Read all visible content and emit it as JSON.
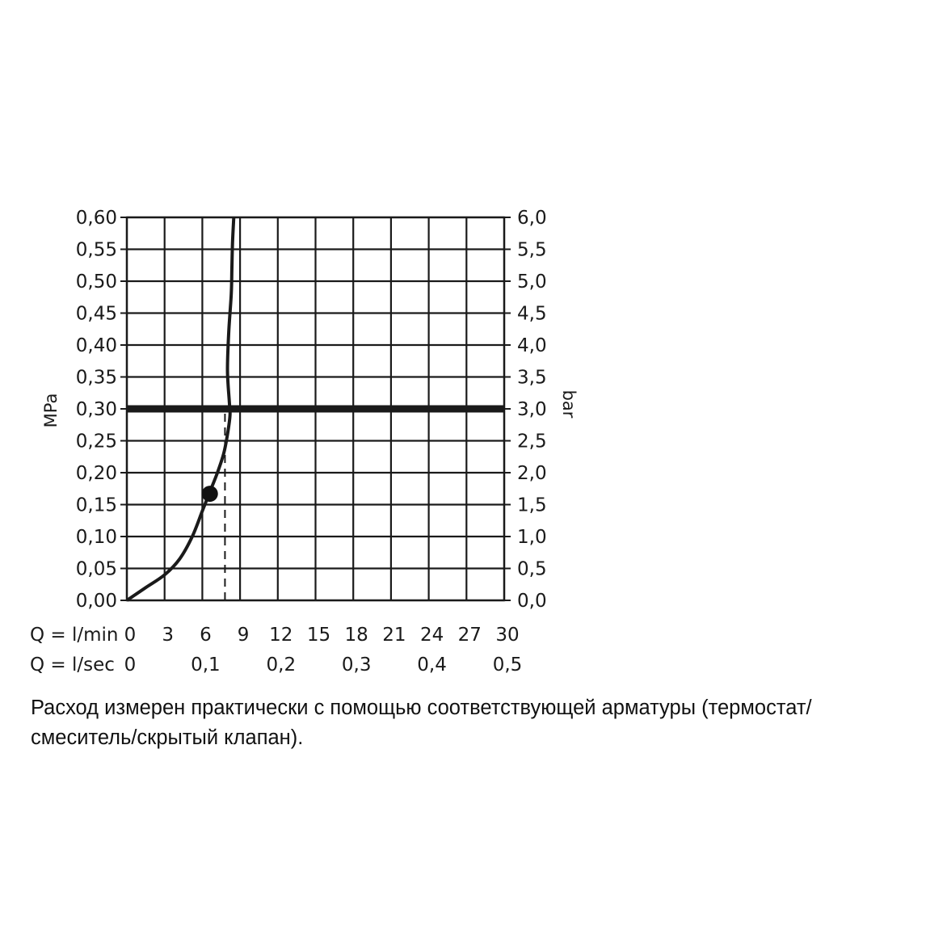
{
  "chart_data": {
    "type": "line",
    "x_unit_label": "Q = l/min",
    "x_secondary_label": "Q = l/sec",
    "y_left_label": "MPa",
    "y_right_label": "bar",
    "x_ticks": [
      "0",
      "3",
      "6",
      "9",
      "12",
      "15",
      "18",
      "21",
      "24",
      "27",
      "30"
    ],
    "x_secondary_ticks": [
      {
        "at": 0,
        "label": "0"
      },
      {
        "at": 6,
        "label": "0,1"
      },
      {
        "at": 12,
        "label": "0,2"
      },
      {
        "at": 18,
        "label": "0,3"
      },
      {
        "at": 24,
        "label": "0,4"
      },
      {
        "at": 30,
        "label": "0,5"
      }
    ],
    "y_left_ticks": [
      "0,00",
      "0,05",
      "0,10",
      "0,15",
      "0,20",
      "0,25",
      "0,30",
      "0,35",
      "0,40",
      "0,45",
      "0,50",
      "0,55",
      "0,60"
    ],
    "y_right_ticks": [
      "0,0",
      "0,5",
      "1,0",
      "1,5",
      "2,0",
      "2,5",
      "3,0",
      "3,5",
      "4,0",
      "4,5",
      "5,0",
      "5,5",
      "6,0"
    ],
    "xlim": [
      0,
      30
    ],
    "ylim": [
      0,
      0.6
    ],
    "grid": true,
    "series": [
      {
        "x": [
          0,
          1.5,
          3.0,
          4.2,
          5.2,
          6.0,
          6.6,
          7.2,
          7.7,
          8.0,
          8.2,
          8.15,
          8.0,
          8.1,
          8.3,
          8.35,
          8.4,
          8.5
        ],
        "y": [
          0,
          0.02,
          0.04,
          0.065,
          0.1,
          0.14,
          0.17,
          0.2,
          0.23,
          0.26,
          0.29,
          0.31,
          0.36,
          0.42,
          0.48,
          0.52,
          0.56,
          0.6
        ]
      }
    ],
    "reference_line_y": 0.3,
    "marker_point": {
      "x": 6.6,
      "y": 0.167
    },
    "dashed_x": 7.8,
    "dashed_from_y": 0,
    "dashed_to_y": 0.3
  },
  "caption": {
    "line1": "Расход измерен практически с помощью соответствующей арматуры (термостат/",
    "line2": "смеситель/скрытый клапан)."
  }
}
